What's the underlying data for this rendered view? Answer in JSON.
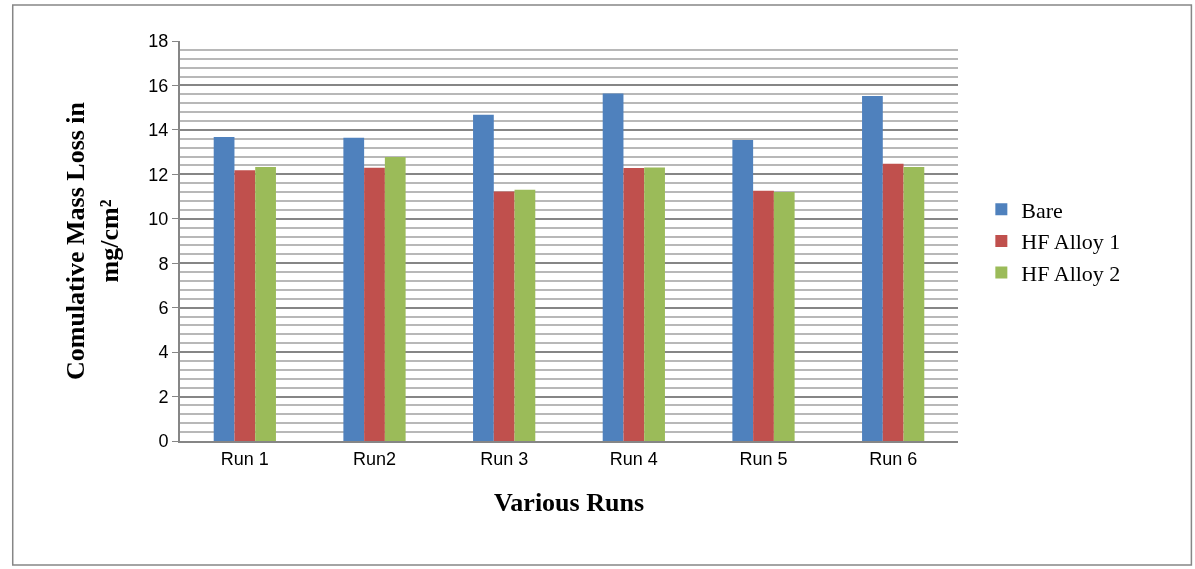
{
  "chart_data": {
    "type": "bar",
    "xlabel": "Various Runs",
    "ylabel": "Comulative Mass Loss in mg/cm²",
    "categories": [
      "Run 1",
      "Run2",
      "Run 3",
      "Run 4",
      "Run 5",
      "Run 6"
    ],
    "series": [
      {
        "name": "Bare",
        "color": "#4f81bd",
        "values": [
          13.68,
          13.65,
          14.68,
          15.64,
          13.54,
          15.52
        ]
      },
      {
        "name": "HF Alloy 1",
        "color": "#c0504d",
        "values": [
          12.18,
          12.3,
          11.23,
          12.28,
          11.26,
          12.48
        ]
      },
      {
        "name": "HF Alloy 2",
        "color": "#9bbb59",
        "values": [
          12.33,
          12.78,
          11.31,
          12.31,
          11.2,
          12.33
        ]
      }
    ],
    "ylim": [
      0,
      18
    ],
    "yticks": [
      0,
      2,
      4,
      6,
      8,
      10,
      12,
      14,
      16,
      18
    ],
    "grid": "y",
    "legend": "right"
  }
}
